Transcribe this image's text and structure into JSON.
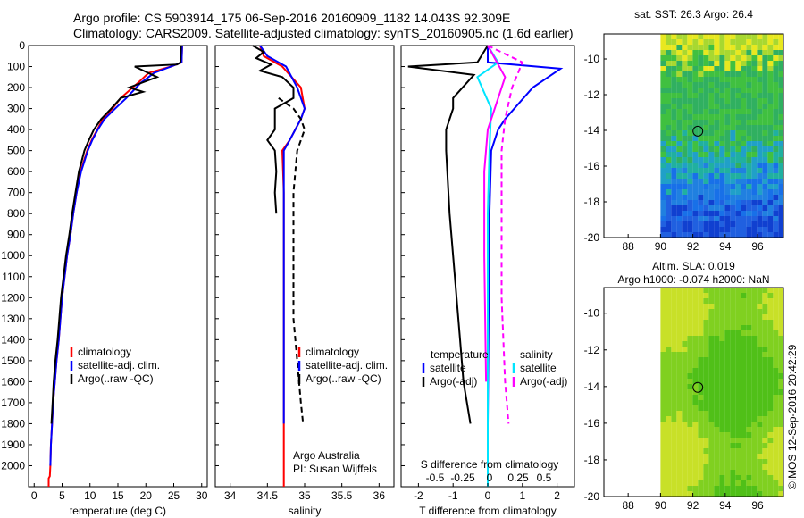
{
  "header": {
    "line1": "Argo profile: CS 5903914_175 06-Sep-2016 20160909_1182 14.043S 92.309E",
    "line2": "Climatology: CARS2009. Satellite-adjusted climatology: synTS_20160905.nc (1.6d earlier)"
  },
  "stamp": "©IMOS 12-Sep-2016 20:42:29",
  "colors": {
    "climatology": "#ff0000",
    "satellite": "#0000ff",
    "argo": "#000000",
    "salinity_argo": "#ff00ff",
    "salinity_sat": "#00e5ff"
  },
  "chart_data": [
    {
      "id": "temperature",
      "type": "line",
      "xlabel": "temperature (deg C)",
      "xlim": [
        -1,
        31
      ],
      "ylim": [
        2100,
        0
      ],
      "xticks": [
        0,
        5,
        10,
        15,
        20,
        25,
        30
      ],
      "yticks": [
        0,
        100,
        200,
        300,
        400,
        500,
        600,
        700,
        800,
        900,
        1000,
        1100,
        1200,
        1300,
        1400,
        1500,
        1600,
        1700,
        1800,
        1900,
        2000
      ],
      "legend": [
        "climatology",
        "satellite-adj. clim.",
        "Argo(..raw -QC)"
      ],
      "series": [
        {
          "name": "climatology",
          "color": "#ff0000",
          "x": [
            26.5,
            26.4,
            24.5,
            20.5,
            18.5,
            15.5,
            14.0,
            12.3,
            11.3,
            10.3,
            9.5,
            8.3,
            7.6,
            7.0,
            6.5,
            5.9,
            5.0,
            4.4,
            4.0,
            3.7,
            3.4,
            3.2,
            3.0,
            2.9,
            2.8,
            2.6,
            2.6
          ],
          "y": [
            0,
            80,
            100,
            130,
            180,
            250,
            300,
            350,
            400,
            450,
            500,
            600,
            700,
            800,
            900,
            1000,
            1200,
            1400,
            1500,
            1600,
            1700,
            1800,
            1900,
            2000,
            2050,
            2060,
            2100
          ]
        },
        {
          "name": "satellite-adj. clim.",
          "color": "#0000ff",
          "x": [
            26.5,
            26.4,
            24.5,
            21.5,
            19.0,
            16.5,
            14.5,
            12.6,
            11.4,
            10.4,
            9.6,
            8.4,
            7.6,
            7.0,
            6.5,
            5.9,
            5.0,
            4.4,
            4.0,
            3.7,
            3.4,
            3.2,
            3.0,
            2.9
          ],
          "y": [
            0,
            80,
            100,
            130,
            180,
            250,
            300,
            350,
            400,
            450,
            500,
            600,
            700,
            800,
            900,
            1000,
            1200,
            1400,
            1500,
            1600,
            1700,
            1800,
            1900,
            2000
          ]
        },
        {
          "name": "Argo(..raw -QC)",
          "color": "#000000",
          "x": [
            26.3,
            26.2,
            25.6,
            18.0,
            22.0,
            17.0,
            19.5,
            15.5,
            13.8,
            12.0,
            10.7,
            9.8,
            9.0,
            8.0,
            7.4,
            6.8,
            6.3,
            5.7,
            4.8,
            4.2,
            3.8,
            3.5,
            3.3,
            3.1
          ],
          "y": [
            0,
            80,
            90,
            100,
            150,
            200,
            220,
            250,
            300,
            350,
            400,
            450,
            500,
            600,
            700,
            800,
            900,
            1000,
            1200,
            1400,
            1500,
            1600,
            1700,
            1800
          ]
        }
      ]
    },
    {
      "id": "salinity",
      "type": "line",
      "xlabel": "salinity",
      "xlim": [
        33.8,
        36.2
      ],
      "ylim": [
        2100,
        0
      ],
      "xticks": [
        34,
        34.5,
        35,
        35.5,
        36
      ],
      "legend": [
        "climatology",
        "satellite-adj. clim.",
        "Argo(..raw -QC)"
      ],
      "annotation": [
        "Argo Australia",
        "PI: Susan Wijffels"
      ],
      "series": [
        {
          "name": "climatology",
          "color": "#ff0000",
          "x": [
            34.4,
            34.45,
            34.7,
            34.95,
            35.0,
            34.95,
            34.8,
            34.7,
            34.72,
            34.72,
            34.72,
            34.72,
            34.72
          ],
          "y": [
            0,
            50,
            100,
            200,
            300,
            350,
            450,
            500,
            700,
            1000,
            1400,
            1800,
            2100
          ]
        },
        {
          "name": "satellite-adj. clim.",
          "color": "#0000ff",
          "x": [
            34.4,
            34.5,
            34.75,
            34.9,
            35.0,
            34.95,
            34.8,
            34.72,
            34.72,
            34.72,
            34.72,
            34.72
          ],
          "y": [
            0,
            50,
            100,
            200,
            300,
            350,
            450,
            500,
            700,
            1000,
            1400,
            1800
          ]
        },
        {
          "name": "Argo(..raw -QC)",
          "color": "#000000",
          "x": [
            34.3,
            34.45,
            34.35,
            34.55,
            34.4,
            34.7,
            34.85,
            34.85,
            34.6,
            34.6,
            34.5,
            34.6,
            34.62,
            34.6,
            34.62
          ],
          "y": [
            0,
            30,
            60,
            90,
            120,
            150,
            200,
            250,
            300,
            400,
            450,
            500,
            600,
            700,
            800
          ]
        },
        {
          "name": "Argo(..raw -QC)",
          "color": "#000000",
          "dashed": true,
          "x": [
            34.65,
            34.85,
            34.95,
            35.0,
            34.9,
            34.85,
            34.85,
            34.85,
            34.9,
            34.95,
            34.98
          ],
          "y": [
            250,
            300,
            350,
            400,
            500,
            700,
            1000,
            1300,
            1500,
            1700,
            1800
          ]
        }
      ]
    },
    {
      "id": "difference",
      "type": "line",
      "xlabel": "T difference from climatology",
      "xlabel_top": "S difference from climatology",
      "xlim": [
        -2.5,
        2.5
      ],
      "ylim": [
        2100,
        0
      ],
      "xticks": [
        -2,
        -1,
        0,
        1,
        2
      ],
      "top_ticks": [
        "-0.5",
        "-0.25",
        "0",
        "0.25",
        "0.5"
      ],
      "legend_left_title": "temperature",
      "legend_right_title": "salinity",
      "legend": [
        "satellite",
        "Argo(-adj)",
        "satellite",
        "Argo(-adj)"
      ],
      "series": [
        {
          "name": "temperature satellite",
          "color": "#0000ff",
          "x": [
            0,
            0,
            2.1,
            1.3,
            0.5,
            0.3,
            0.1,
            0.05,
            0
          ],
          "y": [
            0,
            80,
            110,
            200,
            350,
            400,
            500,
            800,
            1800
          ]
        },
        {
          "name": "temperature Argo(-adj)",
          "color": "#000000",
          "x": [
            0,
            -0.3,
            -2.3,
            -0.4,
            -1.0,
            -1.0,
            -1.2,
            -1.2,
            -1.1,
            -1.0,
            -0.9,
            -0.8,
            -0.7,
            -0.6,
            -0.5
          ],
          "y": [
            0,
            80,
            100,
            140,
            250,
            300,
            400,
            500,
            800,
            1000,
            1200,
            1400,
            1600,
            1700,
            1800
          ]
        },
        {
          "name": "salinity satellite",
          "color": "#00e5ff",
          "x": [
            0,
            0.3,
            -0.3,
            0.1,
            0.05,
            0,
            0,
            0
          ],
          "y": [
            0,
            80,
            150,
            300,
            500,
            800,
            1400,
            2100
          ]
        },
        {
          "name": "salinity Argo(-adj)",
          "color": "#ff00ff",
          "dashed": true,
          "x": [
            0,
            1.0,
            0.7,
            0.5,
            0.4,
            0.4,
            0.4,
            0.5,
            0.6
          ],
          "y": [
            0,
            80,
            200,
            350,
            500,
            800,
            1200,
            1600,
            1800
          ]
        },
        {
          "name": "salinity Argo(-adj)",
          "color": "#ff00ff",
          "x": [
            0,
            0.5,
            0.2,
            0,
            -0.1,
            -0.1,
            -0.05
          ],
          "y": [
            0,
            150,
            300,
            400,
            600,
            1000,
            1600
          ]
        }
      ]
    }
  ],
  "maps": [
    {
      "id": "sst-map",
      "title": "sat. SST: 26.3 Argo: 26.4",
      "xticks": [
        "88",
        "90",
        "92",
        "94",
        "96"
      ],
      "yticks": [
        "-10",
        "-12",
        "-14",
        "-16",
        "-18",
        "-20"
      ],
      "palette": "sst",
      "marker": [
        92.309,
        -14.043
      ]
    },
    {
      "id": "sla-map",
      "title": "Altim. SLA: 0.019",
      "title2": "Argo h1000: -0.074 h2000: NaN",
      "xticks": [
        "88",
        "90",
        "92",
        "94",
        "96"
      ],
      "yticks": [
        "-10",
        "-12",
        "-14",
        "-16",
        "-18",
        "-20"
      ],
      "palette": "sla",
      "marker": [
        92.309,
        -14.043
      ]
    }
  ]
}
